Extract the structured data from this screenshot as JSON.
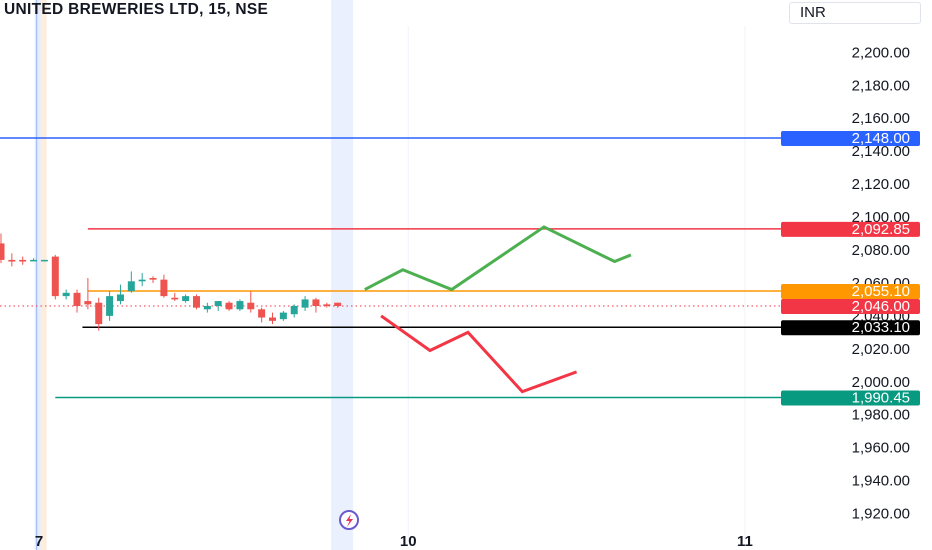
{
  "header": {
    "title": "UNITED BREWERIES LTD, 15, NSE",
    "currency": "INR"
  },
  "colors": {
    "up": "#26a69a",
    "down": "#ef5350",
    "blue": "#2962ff",
    "red_level": "#f23645",
    "orange": "#ff9800",
    "black": "#000000",
    "teal": "#089981",
    "green_arrow": "#4caf50",
    "red_arrow": "#f23645"
  },
  "chart_data": {
    "type": "candlestick",
    "ylim": [
      1910,
      2216
    ],
    "y_ticks": [
      {
        "value": 2200,
        "label": "2,200.00"
      },
      {
        "value": 2180,
        "label": "2,180.00"
      },
      {
        "value": 2160,
        "label": "2,160.00"
      },
      {
        "value": 2140,
        "label": "2,140.00"
      },
      {
        "value": 2120,
        "label": "2,120.00"
      },
      {
        "value": 2100,
        "label": "2,100.00"
      },
      {
        "value": 2080,
        "label": "2,080.00"
      },
      {
        "value": 2060,
        "label": "2,060.00"
      },
      {
        "value": 2040,
        "label": "2,040.00"
      },
      {
        "value": 2020,
        "label": "2,020.00"
      },
      {
        "value": 2000,
        "label": "2,000.00"
      },
      {
        "value": 1980,
        "label": "1,980.00"
      },
      {
        "value": 1960,
        "label": "1,960.00"
      },
      {
        "value": 1940,
        "label": "1,940.00"
      },
      {
        "value": 1920,
        "label": "1,920.00"
      }
    ],
    "x_ticks": [
      {
        "label": "7",
        "bar": 3.5
      },
      {
        "label": "10",
        "bar": 37.5
      },
      {
        "label": "11",
        "bar": 68.5
      }
    ],
    "candles": [
      {
        "o": 2084,
        "h": 2090,
        "l": 2072,
        "c": 2074
      },
      {
        "o": 2074,
        "h": 2078,
        "l": 2070,
        "c": 2073
      },
      {
        "o": 2074,
        "h": 2076,
        "l": 2071,
        "c": 2073
      },
      {
        "o": 2074,
        "h": 2075,
        "l": 2073,
        "c": 2074
      },
      {
        "o": 2074,
        "h": 2074,
        "l": 2073,
        "c": 2074
      },
      {
        "o": 2076,
        "h": 2077,
        "l": 2050,
        "c": 2052
      },
      {
        "o": 2052,
        "h": 2056,
        "l": 2050,
        "c": 2054
      },
      {
        "o": 2054,
        "h": 2056,
        "l": 2042,
        "c": 2046
      },
      {
        "o": 2049,
        "h": 2063,
        "l": 2044,
        "c": 2047
      },
      {
        "o": 2048,
        "h": 2051,
        "l": 2031,
        "c": 2035
      },
      {
        "o": 2040,
        "h": 2055,
        "l": 2037,
        "c": 2052
      },
      {
        "o": 2049,
        "h": 2059,
        "l": 2047,
        "c": 2053
      },
      {
        "o": 2055,
        "h": 2067,
        "l": 2054,
        "c": 2061
      },
      {
        "o": 2061,
        "h": 2066,
        "l": 2058,
        "c": 2062
      },
      {
        "o": 2063,
        "h": 2064,
        "l": 2060,
        "c": 2062
      },
      {
        "o": 2062,
        "h": 2065,
        "l": 2051,
        "c": 2052
      },
      {
        "o": 2051,
        "h": 2054,
        "l": 2049,
        "c": 2050
      },
      {
        "o": 2049,
        "h": 2053,
        "l": 2048,
        "c": 2052
      },
      {
        "o": 2052,
        "h": 2053,
        "l": 2044,
        "c": 2045
      },
      {
        "o": 2044,
        "h": 2048,
        "l": 2042,
        "c": 2046
      },
      {
        "o": 2046,
        "h": 2049,
        "l": 2043,
        "c": 2049
      },
      {
        "o": 2048,
        "h": 2049,
        "l": 2043,
        "c": 2044
      },
      {
        "o": 2044,
        "h": 2050,
        "l": 2043,
        "c": 2049
      },
      {
        "o": 2048,
        "h": 2055,
        "l": 2042,
        "c": 2044
      },
      {
        "o": 2044,
        "h": 2045,
        "l": 2036,
        "c": 2039
      },
      {
        "o": 2039,
        "h": 2042,
        "l": 2035,
        "c": 2037
      },
      {
        "o": 2038,
        "h": 2043,
        "l": 2037,
        "c": 2042
      },
      {
        "o": 2041,
        "h": 2047,
        "l": 2039,
        "c": 2046
      },
      {
        "o": 2045,
        "h": 2052,
        "l": 2043,
        "c": 2050
      },
      {
        "o": 2050,
        "h": 2051,
        "l": 2042,
        "c": 2046
      },
      {
        "o": 2047,
        "h": 2048,
        "l": 2045,
        "c": 2046
      },
      {
        "o": 2048,
        "h": 2048,
        "l": 2045,
        "c": 2046
      }
    ],
    "levels": [
      {
        "value": 2148.0,
        "label": "2,148.00",
        "color": "#2962ff",
        "from_bar": -1
      },
      {
        "value": 2092.85,
        "label": "2,092.85",
        "color": "#f23645",
        "from_bar": 8
      },
      {
        "value": 2055.1,
        "label": "2,055.10",
        "color": "#ff9800",
        "from_bar": 8
      },
      {
        "value": 2046.0,
        "label": "2,046.00",
        "color": "#f23645",
        "from_bar": -1,
        "dotted": true
      },
      {
        "value": 2033.1,
        "label": "2,033.10",
        "color": "#000000",
        "from_bar": 7.5
      },
      {
        "value": 1990.45,
        "label": "1,990.45",
        "color": "#089981",
        "from_bar": 5
      }
    ],
    "projections": [
      {
        "name": "bullish",
        "color": "#4caf50",
        "points": [
          [
            33.5,
            2056
          ],
          [
            37,
            2068
          ],
          [
            41.5,
            2056
          ],
          [
            50,
            2094
          ],
          [
            56.5,
            2073
          ],
          [
            58,
            2077
          ]
        ]
      },
      {
        "name": "bearish",
        "color": "#f23645",
        "points": [
          [
            35,
            2040
          ],
          [
            39.5,
            2019
          ],
          [
            43,
            2030
          ],
          [
            48,
            1994
          ],
          [
            53,
            2006
          ]
        ]
      }
    ]
  }
}
